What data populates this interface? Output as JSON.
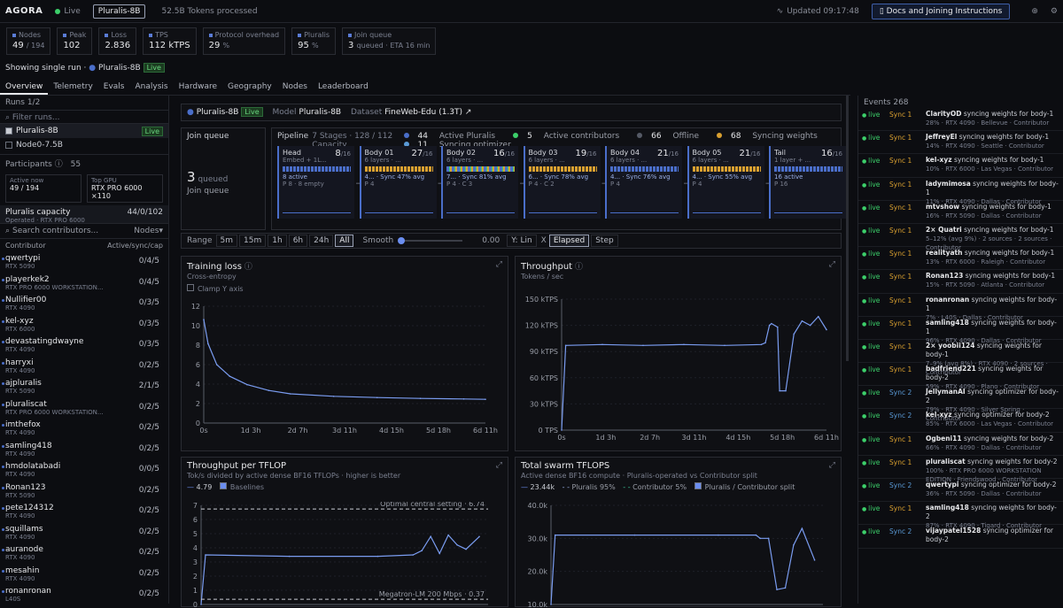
{
  "app": {
    "brand": "AGORA",
    "status": "Live",
    "run": "Pluralis-8B",
    "tokens": "52.5B Tokens processed",
    "updated": "Updated 09:17:48",
    "docs": "Docs and Joining Instructions"
  },
  "stats": [
    {
      "label": "Nodes",
      "value": "49",
      "sub": "/ 194"
    },
    {
      "label": "Peak",
      "value": "102",
      "sub": ""
    },
    {
      "label": "Loss",
      "value": "2.836",
      "sub": ""
    },
    {
      "label": "TPS",
      "value": "112 kTPS",
      "sub": ""
    },
    {
      "label": "Protocol overhead",
      "value": "29",
      "sub": "%"
    },
    {
      "label": "Pluralis",
      "value": "95",
      "sub": "%"
    },
    {
      "label": "Join queue",
      "value": "3",
      "sub": "queued · ETA 16 min"
    }
  ],
  "single": {
    "prefix": "Showing single run",
    "run": "Pluralis-8B",
    "badge": "Live"
  },
  "tabs": [
    "Overview",
    "Telemetry",
    "Evals",
    "Analysis",
    "Hardware",
    "Geography",
    "Nodes",
    "Leaderboard"
  ],
  "sidebar": {
    "runs_label": "Runs",
    "runs_count": "1/2",
    "filter": "Filter runs...",
    "runs": [
      {
        "name": "Pluralis-8B",
        "badge": "Live"
      },
      {
        "name": "Node0-7.5B",
        "badge": ""
      }
    ],
    "participants_label": "Participants",
    "participants": "55",
    "active_now_label": "Active now",
    "active_now": "49 / 194",
    "top_gpu_label": "Top GPU",
    "top_gpu": "RTX PRO 6000 ×110",
    "capacity_label": "Pluralis capacity",
    "capacity_sub": "Operated · RTX PRO 6000",
    "capacity_val": "44/0/102",
    "search": "Search contributors...",
    "nodes_sel": "Nodes",
    "col_contributor": "Contributor",
    "col_active": "Active/sync/cap",
    "contributors": [
      {
        "n": "qwertypi",
        "g": "RTX 5090",
        "v": "0/4/5"
      },
      {
        "n": "playerkek2",
        "g": "RTX PRO 6000 WORKSTATION...",
        "v": "0/4/5"
      },
      {
        "n": "Nullifier00",
        "g": "RTX 4090",
        "v": "0/3/5"
      },
      {
        "n": "kel-xyz",
        "g": "RTX 6000",
        "v": "0/3/5"
      },
      {
        "n": "devastatingdwayne",
        "g": "RTX 4090",
        "v": "0/3/5"
      },
      {
        "n": "harryxi",
        "g": "RTX 4090",
        "v": "0/2/5"
      },
      {
        "n": "ajpluralis",
        "g": "RTX 5090",
        "v": "2/1/5"
      },
      {
        "n": "pluraliscat",
        "g": "RTX PRO 6000 WORKSTATION...",
        "v": "0/2/5"
      },
      {
        "n": "imthefox",
        "g": "RTX 4090",
        "v": "0/2/5"
      },
      {
        "n": "samling418",
        "g": "RTX 4090",
        "v": "0/2/5"
      },
      {
        "n": "hmdolatabadi",
        "g": "RTX 4090",
        "v": "0/0/5"
      },
      {
        "n": "Ronan123",
        "g": "RTX 5090",
        "v": "0/2/5"
      },
      {
        "n": "pete124312",
        "g": "RTX 4090",
        "v": "0/2/5"
      },
      {
        "n": "squillams",
        "g": "RTX 4090",
        "v": "0/2/5"
      },
      {
        "n": "auranode",
        "g": "RTX 4090",
        "v": "0/2/5"
      },
      {
        "n": "mesahin",
        "g": "RTX 4090",
        "v": "0/2/5"
      },
      {
        "n": "ronanronan",
        "g": "L40S",
        "v": "0/2/5"
      }
    ]
  },
  "header": {
    "run": "Pluralis-8B",
    "badge": "Live",
    "model_label": "Model",
    "model": "Pluralis-8B",
    "dataset_label": "Dataset",
    "dataset": "FineWeb-Edu (1.3T) ↗"
  },
  "joinq": {
    "title": "Join queue",
    "count": "3",
    "queued": "queued",
    "label": "Join queue"
  },
  "pipeline": {
    "title": "Pipeline",
    "info": "7 Stages · 128 / 112 Capacity",
    "legend": [
      {
        "n": "44",
        "l": "Active Pluralis",
        "c": "#4a6ec9"
      },
      {
        "n": "5",
        "l": "Active contributors",
        "c": "#3ccf6a"
      },
      {
        "n": "66",
        "l": "Offline",
        "c": "#555a66"
      },
      {
        "n": "68",
        "l": "Syncing weights",
        "c": "#d9a030"
      },
      {
        "n": "11",
        "l": "Syncing optimizer",
        "c": "#5a9ad6"
      }
    ],
    "stages": [
      {
        "t": "Head",
        "s": "Embed + 1L...",
        "c": "8",
        "cap": "/16",
        "l1": "8 active",
        "l2": "P 8 · 8 empty",
        "bar": "b"
      },
      {
        "t": "Body 01",
        "s": "6 layers · ...",
        "c": "27",
        "cap": "/16",
        "l1": "4... · Sync 47% avg",
        "l2": "P 4",
        "bar": "y"
      },
      {
        "t": "Body 02",
        "s": "6 layers · ...",
        "c": "16",
        "cap": "/16",
        "l1": "7... · Sync 81% avg",
        "l2": "P 4 · C 3",
        "bar": "m"
      },
      {
        "t": "Body 03",
        "s": "6 layers · ...",
        "c": "19",
        "cap": "/16",
        "l1": "6... · Sync 78% avg",
        "l2": "P 4 · C 2",
        "bar": "y"
      },
      {
        "t": "Body 04",
        "s": "6 layers · ...",
        "c": "21",
        "cap": "/16",
        "l1": "4... · Sync 76% avg",
        "l2": "P 4",
        "bar": "b"
      },
      {
        "t": "Body 05",
        "s": "6 layers · ...",
        "c": "21",
        "cap": "/16",
        "l1": "4... · Sync 55% avg",
        "l2": "P 4",
        "bar": "y"
      },
      {
        "t": "Tail",
        "s": "1 layer + ...",
        "c": "16",
        "cap": "/16",
        "l1": "16 active",
        "l2": "P 16",
        "bar": "b"
      }
    ]
  },
  "controls": {
    "range": "Range",
    "opts": [
      "5m",
      "15m",
      "1h",
      "6h",
      "24h",
      "All"
    ],
    "smooth": "Smooth",
    "smooth_val": "0.00",
    "ylin": "Y: Lin",
    "x": "X",
    "elapsed": "Elapsed",
    "step": "Step"
  },
  "charts": {
    "loss": {
      "title": "Training loss",
      "sub": "Cross-entropy",
      "clamp": "Clamp Y axis"
    },
    "tput": {
      "title": "Throughput",
      "sub": "Tokens / sec"
    },
    "tflop": {
      "title": "Throughput per TFLOP",
      "sub": "Tok/s divided by active dense BF16 TFLOPs · higher is better",
      "val": "4.79",
      "baselines": "Baselines",
      "opt": "Optimal central setting · 6.74",
      "meg": "Megatron-LM 200 Mbps · 0.37"
    },
    "swarm": {
      "title": "Total swarm TFLOPS",
      "sub": "Active dense BF16 compute · Pluralis-operated vs Contributor split",
      "val": "23.44k",
      "plu": "Pluralis 95%",
      "con": "Contributor 5%",
      "split": "Pluralis / Contributor split"
    }
  },
  "chart_data": [
    {
      "type": "line",
      "title": "Training loss",
      "ylim": [
        0,
        14
      ],
      "yticks": [
        0,
        2,
        4,
        6,
        8,
        10,
        12
      ],
      "xticks": [
        "0s",
        "1d 3h",
        "2d 7h",
        "3d 11h",
        "4d 15h",
        "5d 18h",
        "6d 11h"
      ],
      "x": [
        0,
        0.1,
        0.3,
        0.6,
        1,
        1.5,
        2,
        3,
        4,
        5,
        6,
        6.5
      ],
      "y": [
        12.4,
        9.5,
        7,
        5.6,
        4.6,
        3.9,
        3.5,
        3.2,
        3.05,
        2.95,
        2.88,
        2.84
      ]
    },
    {
      "type": "line",
      "title": "Throughput",
      "ylabel": "kTPS",
      "ylim": [
        0,
        150
      ],
      "yticks": [
        "0 TPS",
        "30 kTPS",
        "60 kTPS",
        "90 kTPS",
        "120 kTPS",
        "150 kTPS"
      ],
      "xticks": [
        "0s",
        "1d 3h",
        "2d 7h",
        "3d 11h",
        "4d 15h",
        "5d 18h",
        "6d 11h"
      ],
      "x": [
        0,
        0.1,
        1,
        2,
        3,
        4,
        4.9,
        5.0,
        5.1,
        5.15,
        5.3,
        5.35,
        5.5,
        5.7,
        5.9,
        6.1,
        6.3,
        6.5
      ],
      "y": [
        0,
        97,
        98,
        97,
        98,
        97,
        98,
        100,
        120,
        122,
        118,
        45,
        45,
        110,
        125,
        120,
        130,
        115
      ]
    },
    {
      "type": "line",
      "title": "Throughput per TFLOP",
      "ylim": [
        0,
        7
      ],
      "yticks": [
        1,
        2,
        3,
        4,
        5,
        6,
        7
      ],
      "x": [
        0,
        0.1,
        2,
        4,
        4.8,
        5.0,
        5.2,
        5.4,
        5.6,
        5.8,
        6.0,
        6.3
      ],
      "y": [
        0,
        3.5,
        3.4,
        3.4,
        3.5,
        3.8,
        4.8,
        3.6,
        4.9,
        4.2,
        3.9,
        4.79
      ]
    },
    {
      "type": "line",
      "title": "Total swarm TFLOPS",
      "ylim": [
        10000,
        40000
      ],
      "yticks": [
        "10.0k",
        "20.0k",
        "30.0k",
        "40.0k"
      ],
      "x": [
        0,
        0.1,
        2,
        4,
        4.9,
        5.0,
        5.2,
        5.4,
        5.6,
        5.8,
        6.0,
        6.3
      ],
      "y": [
        10000,
        31000,
        31000,
        31000,
        31000,
        30000,
        30000,
        14500,
        15000,
        28000,
        33000,
        23440
      ]
    }
  ],
  "events": {
    "title": "Events",
    "count": "268",
    "items": [
      {
        "sy": "Sync 1",
        "sc": "#d9a030",
        "who": "ClarityOD",
        "what": "syncing weights for body-1",
        "d": "28% · RTX 4090 · Bellevue · Contributor"
      },
      {
        "sy": "Sync 1",
        "sc": "#d9a030",
        "who": "JeffreyEl",
        "what": "syncing weights for body-1",
        "d": "14% · RTX 4090 · Seattle · Contributor"
      },
      {
        "sy": "Sync 1",
        "sc": "#d9a030",
        "who": "kel-xyz",
        "what": "syncing weights for body-1",
        "d": "10% · RTX 6000 · Las Vegas · Contributor"
      },
      {
        "sy": "Sync 1",
        "sc": "#d9a030",
        "who": "ladymimosa",
        "what": "syncing weights for body-1",
        "d": "11% · RTX 4090 · Dallas · Contributor"
      },
      {
        "sy": "Sync 1",
        "sc": "#d9a030",
        "who": "mtvshow",
        "what": "syncing weights for body-1",
        "d": "16% · RTX 5090 · Dallas · Contributor"
      },
      {
        "sy": "Sync 1",
        "sc": "#d9a030",
        "who": "2× Quatri",
        "what": "syncing weights for body-1",
        "d": "5–12% (avg 9%) · 2 sources · 2 sources · Contributor"
      },
      {
        "sy": "Sync 1",
        "sc": "#d9a030",
        "who": "realityath",
        "what": "syncing weights for body-1",
        "d": "13% · RTX 6000 · Raleigh · Contributor"
      },
      {
        "sy": "Sync 1",
        "sc": "#d9a030",
        "who": "Ronan123",
        "what": "syncing weights for body-1",
        "d": "15% · RTX 5090 · Atlanta · Contributor"
      },
      {
        "sy": "Sync 1",
        "sc": "#d9a030",
        "who": "ronanronan",
        "what": "syncing weights for body-1",
        "d": "7% · L40S · Dallas · Contributor"
      },
      {
        "sy": "Sync 1",
        "sc": "#d9a030",
        "who": "samling418",
        "what": "syncing weights for body-1",
        "d": "96% · RTX 4090 · Dallas · Contributor"
      },
      {
        "sy": "Sync 1",
        "sc": "#d9a030",
        "who": "2× yoobii124",
        "what": "syncing weights for body-1",
        "d": "7–9% (avg 8%) · RTX 4090 · 2 sources · Contributor"
      },
      {
        "sy": "Sync 1",
        "sc": "#d9a030",
        "who": "badfriend221",
        "what": "syncing weights for body-2",
        "d": "59% · RTX 4090 · Plano · Contributor"
      },
      {
        "sy": "Sync 2",
        "sc": "#5a9ad6",
        "who": "JellymanAI",
        "what": "syncing optimizer for body-2",
        "d": "79% · RTX 4090 · Silver Spring · Contributor"
      },
      {
        "sy": "Sync 2",
        "sc": "#5a9ad6",
        "who": "kel-xyz",
        "what": "syncing optimizer for body-2",
        "d": "85% · RTX 6000 · Las Vegas · Contributor"
      },
      {
        "sy": "Sync 1",
        "sc": "#d9a030",
        "who": "Ogbeni11",
        "what": "syncing weights for body-2",
        "d": "66% · RTX 4090 · Dallas · Contributor"
      },
      {
        "sy": "Sync 1",
        "sc": "#d9a030",
        "who": "pluraliscat",
        "what": "syncing weights for body-2",
        "d": "100% · RTX PRO 6000 WORKSTATION EDITION · Friendswood · Contributor"
      },
      {
        "sy": "Sync 2",
        "sc": "#5a9ad6",
        "who": "qwertypi",
        "what": "syncing optimizer for body-2",
        "d": "36% · RTX 5090 · Dallas · Contributor"
      },
      {
        "sy": "Sync 1",
        "sc": "#d9a030",
        "who": "samling418",
        "what": "syncing weights for body-2",
        "d": "87% · RTX 4090 · Tigard · Contributor"
      },
      {
        "sy": "Sync 2",
        "sc": "#5a9ad6",
        "who": "vijaypatel1528",
        "what": "syncing optimizer for body-2",
        "d": ""
      }
    ]
  }
}
